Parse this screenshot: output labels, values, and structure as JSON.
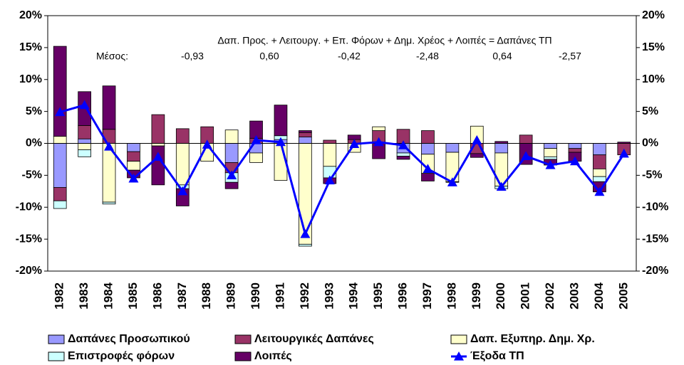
{
  "chart_data": {
    "type": "bar",
    "stacked": true,
    "categories": [
      "1982",
      "1983",
      "1984",
      "1985",
      "1986",
      "1987",
      "1988",
      "1989",
      "1990",
      "1991",
      "1992",
      "1993",
      "1994",
      "1995",
      "1996",
      "1997",
      "1998",
      "1999",
      "2000",
      "2001",
      "2002",
      "2003",
      "2004",
      "2005"
    ],
    "series": [
      {
        "name": "Δαπάνες Προσωπικού",
        "color": "#9999ff",
        "values": [
          -6.9,
          0.7,
          0,
          -1.3,
          0,
          0,
          0,
          -3.0,
          -1.5,
          0.6,
          1.0,
          0,
          0,
          0,
          -1.5,
          -1.7,
          -1.4,
          0,
          -1.5,
          0,
          -0.8,
          -0.8,
          -1.8,
          0
        ]
      },
      {
        "name": "Λειτουργικές Δαπάνες",
        "color": "#993366",
        "values": [
          -2.1,
          2.1,
          2.2,
          -1.5,
          4.5,
          2.3,
          2.6,
          -1.6,
          0.8,
          0,
          0.7,
          0.5,
          0.6,
          2.0,
          2.2,
          2.0,
          0,
          -1.6,
          0,
          1.3,
          0,
          -0.6,
          -2.2,
          -1.8
        ]
      },
      {
        "name": "Δαπ. Εξυπηρ. Δημ. Χρ.",
        "color": "#ffffcc",
        "values": [
          1.1,
          -1.0,
          -9.2,
          -1.4,
          -0.4,
          -6.5,
          -2.8,
          2.1,
          -1.5,
          -5.8,
          -15.8,
          -3.6,
          -1.4,
          0.6,
          0,
          -3.0,
          -4.6,
          2.7,
          -5.2,
          0,
          -1.3,
          0,
          -1.2,
          0
        ]
      },
      {
        "name": "Επιστροφές φόρων",
        "color": "#ccffff",
        "values": [
          -1.2,
          -1.1,
          -0.3,
          0,
          0,
          -0.6,
          0,
          -1.5,
          0,
          0.6,
          -0.3,
          -1.8,
          0,
          0,
          -0.5,
          0,
          0,
          0,
          -0.4,
          0,
          -0.4,
          0,
          -0.8,
          0
        ]
      },
      {
        "name": "Λοιπές",
        "color": "#660066",
        "values": [
          14.1,
          5.3,
          6.8,
          -1.2,
          -6.1,
          -2.7,
          0,
          -1.0,
          2.7,
          4.8,
          0.3,
          -0.9,
          0.7,
          -2.4,
          -0.5,
          -1.2,
          -0.1,
          -0.6,
          0.3,
          -3.3,
          -0.9,
          -1.4,
          -1.6,
          0.2
        ]
      },
      {
        "name": "Έξοδα ΤΠ",
        "color": "#0000ff",
        "type": "line",
        "values": [
          4.9,
          6.0,
          -0.5,
          -5.5,
          -2.1,
          -7.5,
          -0.2,
          -5.0,
          0.5,
          0.2,
          -14.2,
          -5.8,
          -0.1,
          0.2,
          -0.3,
          -4.0,
          -6.1,
          0.5,
          -6.8,
          -2.0,
          -3.4,
          -2.8,
          -7.6,
          -1.6
        ]
      }
    ],
    "ylim": [
      -20,
      20
    ],
    "yticks": [
      {
        "value": -20,
        "label": "-20%"
      },
      {
        "value": -15,
        "label": "-15%"
      },
      {
        "value": -10,
        "label": "-10%"
      },
      {
        "value": -5,
        "label": "-5%"
      },
      {
        "value": 0,
        "label": "0%"
      },
      {
        "value": 5,
        "label": "5%"
      },
      {
        "value": 10,
        "label": "10%"
      },
      {
        "value": 15,
        "label": "15%"
      },
      {
        "value": 20,
        "label": "20%"
      }
    ],
    "y2lim": [
      -20,
      20
    ],
    "y2ticks": [
      {
        "value": -20,
        "label": "-20%"
      },
      {
        "value": -15,
        "label": "-15%"
      },
      {
        "value": -10,
        "label": "-10%"
      },
      {
        "value": -5,
        "label": "-5%"
      },
      {
        "value": 0,
        "label": "0%"
      },
      {
        "value": 5,
        "label": "5%"
      },
      {
        "value": 10,
        "label": "10%"
      },
      {
        "value": 15,
        "label": "15%"
      },
      {
        "value": 20,
        "label": "20%"
      }
    ],
    "annotations": {
      "formula": "Δαπ. Προς. + Λειτουργ. + Επ. Φόρων + Δημ. Χρέος + Λοιπές = Δαπάνες ΤΠ",
      "mean_label": "Μέσος:",
      "means": [
        "-0,93",
        "0,60",
        "-0,42",
        "-2,48",
        "0,64",
        "-2,57"
      ]
    },
    "legend": "bottom"
  }
}
